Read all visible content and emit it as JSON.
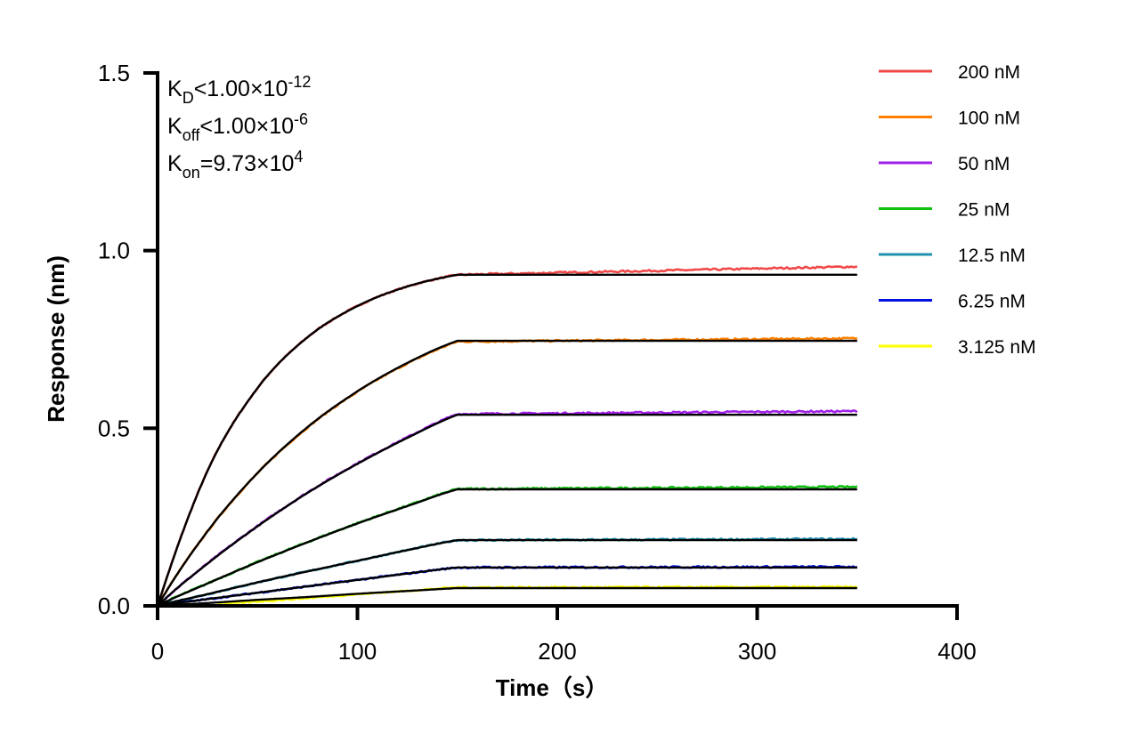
{
  "chart_data": {
    "type": "line",
    "xlabel": "Time（s）",
    "ylabel": "Response (nm)",
    "xlim": [
      0,
      400
    ],
    "ylim": [
      0,
      1.5
    ],
    "xticks": [
      "0",
      "100",
      "200",
      "300",
      "400"
    ],
    "yticks": [
      "0.0",
      "0.5",
      "1.0",
      "1.5"
    ],
    "grid": false,
    "legend_placement": "top-right",
    "annotations": {
      "kd": {
        "k": "K",
        "sub": "D",
        "rel": "<1.00×10",
        "sup": "-12"
      },
      "koff": {
        "k": "K",
        "sub": "off",
        "rel": "<1.00×10",
        "sup": "-6"
      },
      "kon": {
        "k": "K",
        "sub": "on",
        "rel": "=9.73×10",
        "sup": "4"
      }
    },
    "fit_color": "#000000",
    "fit_x": [
      0,
      25,
      50,
      75,
      100,
      125,
      150,
      350
    ],
    "series": [
      {
        "name": "200 nM",
        "color": "#f04848",
        "fit": [
          0,
          0.38,
          0.613,
          0.756,
          0.844,
          0.899,
          0.932,
          0.932
        ],
        "measured_150": 0.932,
        "measured_350": 0.955
      },
      {
        "name": "100 nM",
        "color": "#ff8000",
        "fit": [
          0,
          0.21,
          0.374,
          0.503,
          0.604,
          0.684,
          0.746,
          0.746
        ],
        "measured_150": 0.744,
        "measured_350": 0.753
      },
      {
        "name": "50 nM",
        "color": "#a020e8",
        "fit": [
          0,
          0.119,
          0.224,
          0.318,
          0.4,
          0.473,
          0.538,
          0.538
        ],
        "measured_150": 0.54,
        "measured_350": 0.548
      },
      {
        "name": "25 nM",
        "color": "#10c010",
        "fit": [
          0,
          0.063,
          0.123,
          0.179,
          0.232,
          0.281,
          0.328,
          0.328
        ],
        "measured_150": 0.329,
        "measured_350": 0.335
      },
      {
        "name": "12.5 nM",
        "color": "#2090b0",
        "fit": [
          0,
          0.033,
          0.066,
          0.097,
          0.127,
          0.157,
          0.185,
          0.185
        ],
        "measured_150": 0.185,
        "measured_350": 0.188
      },
      {
        "name": "6.25 nM",
        "color": "#0010e0",
        "fit": [
          0,
          0.019,
          0.037,
          0.055,
          0.073,
          0.091,
          0.108,
          0.108
        ],
        "measured_150": 0.108,
        "measured_350": 0.11
      },
      {
        "name": "3.125 nM",
        "color": "#ffff00",
        "fit": [
          0,
          0.008,
          0.017,
          0.025,
          0.034,
          0.042,
          0.05,
          0.05
        ],
        "measured_150": 0.052,
        "measured_350": 0.053
      }
    ]
  }
}
